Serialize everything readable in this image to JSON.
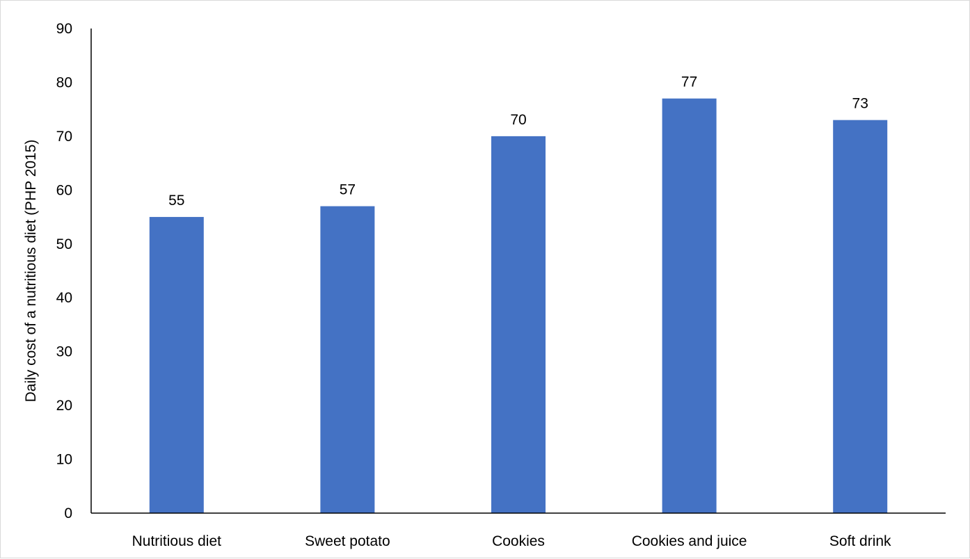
{
  "chart_data": {
    "type": "bar",
    "title": "",
    "xlabel": "",
    "ylabel": "Daily cost of a nutritious diet (PHP 2015)",
    "categories": [
      "Nutritious diet",
      "Sweet potato",
      "Cookies",
      "Cookies and juice",
      "Soft drink"
    ],
    "values": [
      55,
      57,
      70,
      77,
      73
    ],
    "ylim": [
      0,
      90
    ],
    "yticks": [
      0,
      10,
      20,
      30,
      40,
      50,
      60,
      70,
      80,
      90
    ],
    "grid": false,
    "legend": "none",
    "bar_color": "#4472C4",
    "data_labels": true
  }
}
